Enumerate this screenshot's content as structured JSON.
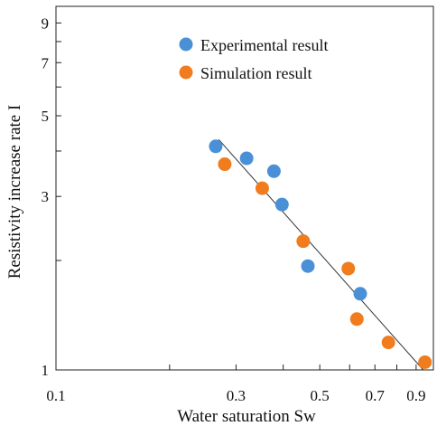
{
  "chart_data": {
    "type": "scatter",
    "title": "",
    "xlabel": "Water saturation Sw",
    "ylabel": "Resistivity increase rate I",
    "x_scale": "log",
    "y_scale": "log",
    "xlim": [
      0.1,
      1.0
    ],
    "ylim": [
      1,
      10
    ],
    "x_tick_labels": [
      {
        "value": 0.1,
        "label": "0.1"
      },
      {
        "value": 0.3,
        "label": "0.3"
      },
      {
        "value": 0.5,
        "label": "0.5"
      },
      {
        "value": 0.7,
        "label": "0.7"
      },
      {
        "value": 0.9,
        "label": "0.9"
      }
    ],
    "y_tick_labels": [
      {
        "value": 1,
        "label": "1"
      },
      {
        "value": 3,
        "label": "3"
      },
      {
        "value": 5,
        "label": "5"
      },
      {
        "value": 7,
        "label": "7"
      },
      {
        "value": 9,
        "label": "9"
      }
    ],
    "x_minor_ticks": [
      0.2,
      0.3,
      0.4,
      0.5,
      0.6,
      0.7,
      0.8,
      0.9
    ],
    "y_minor_ticks": [
      2,
      3,
      4,
      5,
      6,
      7,
      8,
      9
    ],
    "grid": false,
    "legend_position": "top-center",
    "series": [
      {
        "name": "Experimental result",
        "color": "#4a90d6",
        "points": [
          {
            "x": 0.265,
            "y": 4.12
          },
          {
            "x": 0.32,
            "y": 3.82
          },
          {
            "x": 0.378,
            "y": 3.52
          },
          {
            "x": 0.397,
            "y": 2.85
          },
          {
            "x": 0.465,
            "y": 1.93
          },
          {
            "x": 0.64,
            "y": 1.62
          }
        ]
      },
      {
        "name": "Simulation result",
        "color": "#f07c1e",
        "points": [
          {
            "x": 0.28,
            "y": 3.68
          },
          {
            "x": 0.352,
            "y": 3.16
          },
          {
            "x": 0.452,
            "y": 2.26
          },
          {
            "x": 0.595,
            "y": 1.9
          },
          {
            "x": 0.627,
            "y": 1.38
          },
          {
            "x": 0.76,
            "y": 1.19
          },
          {
            "x": 0.95,
            "y": 1.05
          }
        ]
      }
    ],
    "fit_line": {
      "color": "#333333",
      "from": {
        "x": 0.27,
        "y": 4.3
      },
      "to": {
        "x": 0.94,
        "y": 1.0
      }
    }
  }
}
